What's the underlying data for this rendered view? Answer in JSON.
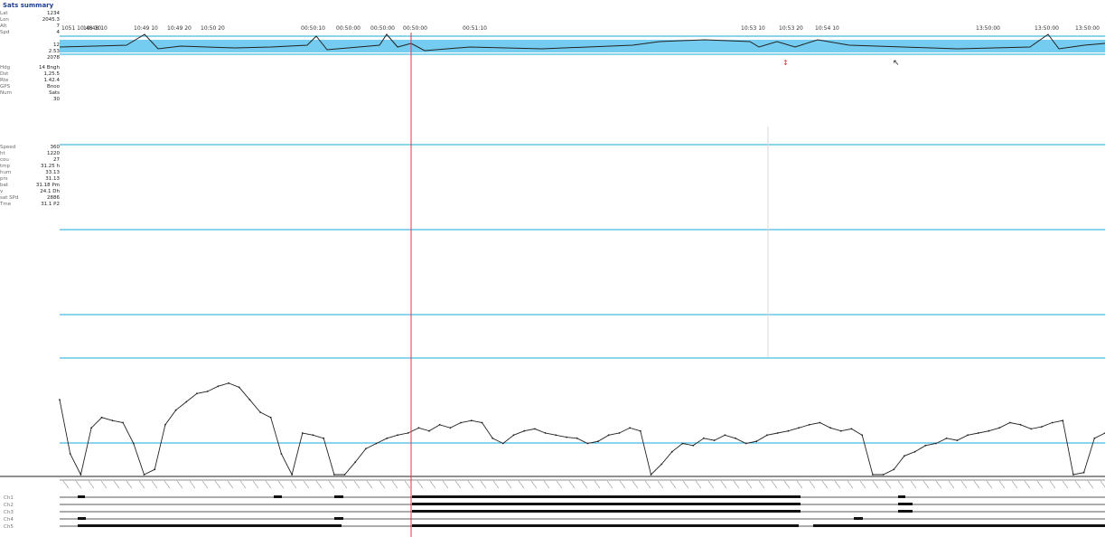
{
  "window": {
    "title": "Sats summary",
    "accent": "#1aa7d9",
    "band_fill": "#74cdf0",
    "cursor_color": "#e33a3a",
    "trace_color": "#222222"
  },
  "left_panel": {
    "top_stats": [
      {
        "label": "Lat",
        "value": "1234"
      },
      {
        "label": "Lon",
        "value": "2045.3"
      },
      {
        "label": "Alt",
        "value": "7"
      },
      {
        "label": "Spd",
        "value": "4"
      },
      {
        "label": "",
        "value": ""
      },
      {
        "label": "",
        "value": "12"
      },
      {
        "label": "",
        "value": "2.53"
      },
      {
        "label": "",
        "value": "2078"
      }
    ],
    "mid_stats": [
      {
        "label": "Hdg",
        "value": "14 Bngh"
      },
      {
        "label": "Dst",
        "value": "1,25.5"
      },
      {
        "label": "Rte",
        "value": "1.42.4"
      },
      {
        "label": "GPS",
        "value": "Bnoo"
      },
      {
        "label": "Num",
        "value": "Sats"
      },
      {
        "label": "",
        "value": "30"
      }
    ],
    "low_stats": [
      {
        "label": "Speed",
        "value": "360"
      },
      {
        "label": "ht",
        "value": "1220"
      },
      {
        "label": "cou",
        "value": "27"
      },
      {
        "label": "tmp",
        "value": "31.25 h"
      },
      {
        "label": "hum",
        "value": "33.13"
      },
      {
        "label": "prs",
        "value": "31.13"
      },
      {
        "label": "bat",
        "value": "31.18 Pm"
      },
      {
        "label": "v",
        "value": "24.1 Dh"
      },
      {
        "label": "sat SPd",
        "value": "2886"
      },
      {
        "label": "Tme",
        "value": "31.1 P2"
      }
    ]
  },
  "timeline_labels": [
    "1051 10:48 10",
    "10:48 10",
    "10:49 10",
    "10:49 20",
    "10:50 20",
    "00:50:10",
    "00:50:00",
    "00:50:00",
    "00:50:00",
    "00:51:10",
    "10:53 10",
    "10:53 20",
    "10:54 10",
    "13:50:00",
    "13:50:00",
    "13:50:00"
  ],
  "channel_labels": [
    "Ch1",
    "Ch2",
    "Ch3",
    "Ch4",
    "Ch5"
  ],
  "chart_data": {
    "type": "line",
    "title": "",
    "xlabel": "",
    "ylabel": "",
    "x": [
      0,
      1,
      2,
      3,
      4,
      5,
      6,
      7,
      8,
      9,
      10,
      11,
      12,
      13,
      14,
      15,
      16,
      17,
      18,
      19,
      20,
      21,
      22,
      23,
      24,
      25,
      26,
      27,
      28,
      29,
      30,
      31,
      32,
      33,
      34,
      35,
      36,
      37,
      38,
      39,
      40,
      41,
      42,
      43,
      44,
      45,
      46,
      47,
      48,
      49,
      50,
      51,
      52,
      53,
      54,
      55,
      56,
      57,
      58,
      59,
      60,
      61,
      62,
      63,
      64,
      65,
      66,
      67,
      68,
      69,
      70,
      71,
      72,
      73,
      74,
      75,
      76,
      77,
      78,
      79,
      80,
      81,
      82,
      83,
      84,
      85,
      86,
      87,
      88,
      89,
      90,
      91,
      92,
      93,
      94,
      95,
      96,
      97,
      98,
      99
    ],
    "series": [
      {
        "values": [
          72,
          20,
          0,
          45,
          55,
          52,
          50,
          30,
          0,
          5,
          48,
          62,
          70,
          78,
          80,
          85,
          88,
          84,
          72,
          60,
          55,
          20,
          0,
          40,
          38,
          35,
          0,
          0,
          12,
          25,
          30,
          35,
          38,
          40,
          45,
          42,
          48,
          45,
          50,
          52,
          50,
          35,
          30,
          38,
          42,
          44,
          40,
          38,
          36,
          35,
          30,
          32,
          38,
          40,
          45,
          42,
          0,
          10,
          22,
          30,
          28,
          35,
          33,
          38,
          35,
          30,
          32,
          38,
          40,
          42,
          45,
          48,
          50,
          45,
          42,
          44,
          38,
          0,
          0,
          5,
          18,
          22,
          28,
          30,
          35,
          33,
          38,
          40,
          42,
          45,
          50,
          48,
          44,
          46,
          50,
          52,
          0,
          2,
          35,
          40
        ]
      }
    ],
    "ylim": [
      0,
      100
    ]
  }
}
